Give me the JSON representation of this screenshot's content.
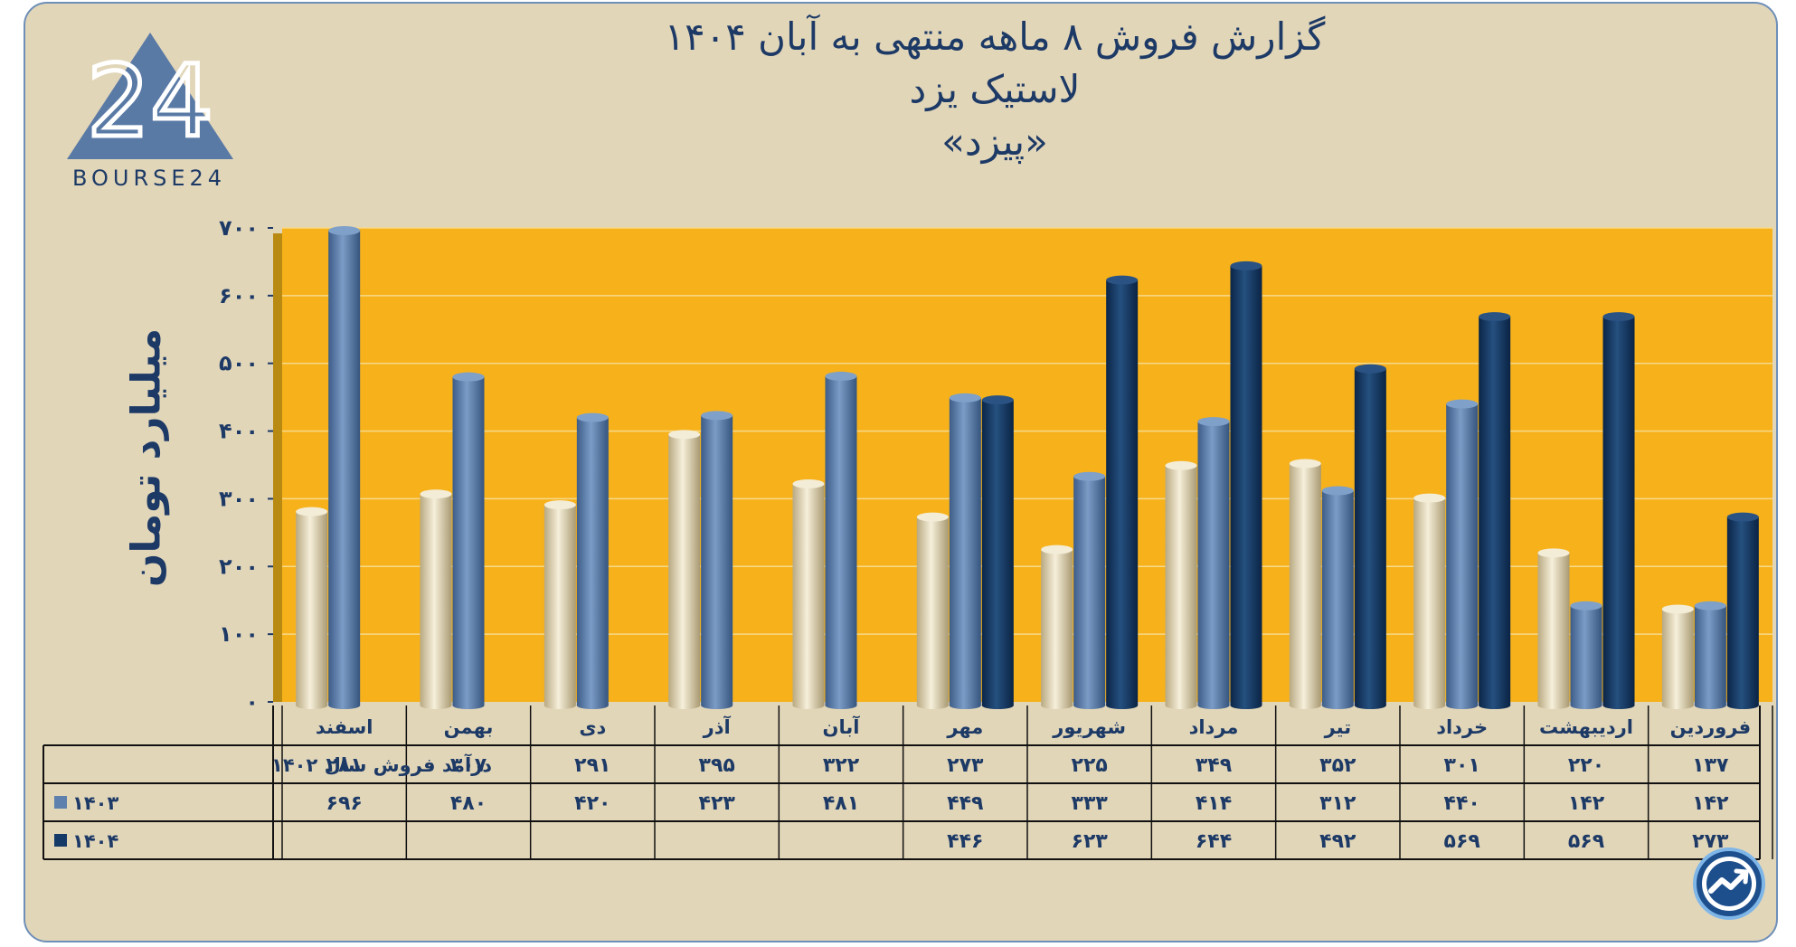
{
  "title": {
    "line1": "گزارش  فروش ۸ ماهه منتهی به آبان ۱۴۰۴",
    "line2": "لاستیک یزد",
    "line3": "«پیزد»"
  },
  "logo": {
    "text": "BOURSE24",
    "mark": "24"
  },
  "colors": {
    "plot_bg": "#f7b21b",
    "series_1402": "#e8dcbc",
    "series_1403": "#5d80ad",
    "series_1404": "#153a68",
    "frame_bg": "#e2d6b9",
    "text": "#1d3a66"
  },
  "chart_data": {
    "type": "bar",
    "title": "گزارش  فروش ۸ ماهه منتهی به آبان ۱۴۰۴ - لاستیک یزد «پیزد»",
    "ylabel": "میلیارد تومان",
    "xlabel": "",
    "ylim": [
      0,
      700
    ],
    "yticks": [
      0,
      100,
      200,
      300,
      400,
      500,
      600,
      700
    ],
    "ytick_labels": [
      "۰",
      "۱۰۰",
      "۲۰۰",
      "۳۰۰",
      "۴۰۰",
      "۵۰۰",
      "۶۰۰",
      "۷۰۰"
    ],
    "grid": true,
    "categories": [
      "فروردین",
      "اردیبهشت",
      "خرداد",
      "تیر",
      "مرداد",
      "شهریور",
      "مهر",
      "آبان",
      "آذر",
      "دی",
      "بهمن",
      "اسفند"
    ],
    "series": [
      {
        "name": "درآمد فروش سال ۱۴۰۲",
        "color": "#e8dcbc",
        "values": [
          137,
          220,
          301,
          352,
          349,
          225,
          273,
          322,
          395,
          291,
          307,
          281
        ],
        "labels": [
          "۱۳۷",
          "۲۲۰",
          "۳۰۱",
          "۳۵۲",
          "۳۴۹",
          "۲۲۵",
          "۲۷۳",
          "۳۲۲",
          "۳۹۵",
          "۲۹۱",
          "۳۰۷",
          "۲۸۱"
        ]
      },
      {
        "name": "۱۴۰۳",
        "color": "#5d80ad",
        "values": [
          142,
          142,
          440,
          312,
          414,
          333,
          449,
          481,
          423,
          420,
          480,
          696
        ],
        "labels": [
          "۱۴۲",
          "۱۴۲",
          "۴۴۰",
          "۳۱۲",
          "۴۱۴",
          "۳۳۳",
          "۴۴۹",
          "۴۸۱",
          "۴۲۳",
          "۴۲۰",
          "۴۸۰",
          "۶۹۶"
        ]
      },
      {
        "name": "۱۴۰۴",
        "color": "#153a68",
        "values": [
          273,
          569,
          569,
          492,
          644,
          623,
          446,
          null,
          null,
          null,
          null,
          null
        ],
        "labels": [
          "۲۷۳",
          "۵۶۹",
          "۵۶۹",
          "۴۹۲",
          "۶۴۴",
          "۶۲۳",
          "۴۴۶",
          "",
          "",
          "",
          "",
          ""
        ]
      }
    ]
  }
}
